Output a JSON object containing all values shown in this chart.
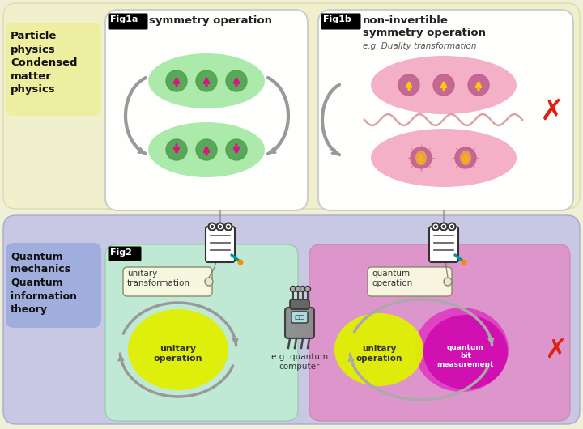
{
  "bg_outer": "#f0f0d8",
  "bg_top": "#f0f0d0",
  "bg_bottom": "#d0d0e8",
  "fig1a_bg": "#ffffff",
  "fig1b_bg": "#ffffff",
  "fig2_left_bg": "#c0ecd4",
  "fig2_right_bg": "#e090c8",
  "particle_box_bg": "#f0f0a0",
  "quantum_box_bg": "#a8c0e8",
  "green_blob": "#80e080",
  "pink_blob": "#f090b0",
  "spin_circle_green": "#50a050",
  "spin_circle_pink": "#c06090",
  "spin_arrow_magenta": "#dd1188",
  "spin_arrow_yellow": "#ffcc00",
  "yellow_circle": "#e0f000",
  "magenta_circle": "#cc00aa",
  "gray_arrow": "#999999",
  "red_cross": "#dd2211",
  "notebook_body": "#ffffff",
  "notebook_border": "#333333",
  "tag_bg": "#f8f8e0",
  "tag_border": "#888866",
  "title": "symmetry operation",
  "title_b": "non-invertible\nsymmetry operation",
  "subtitle_b": "e.g. Duality transformation"
}
